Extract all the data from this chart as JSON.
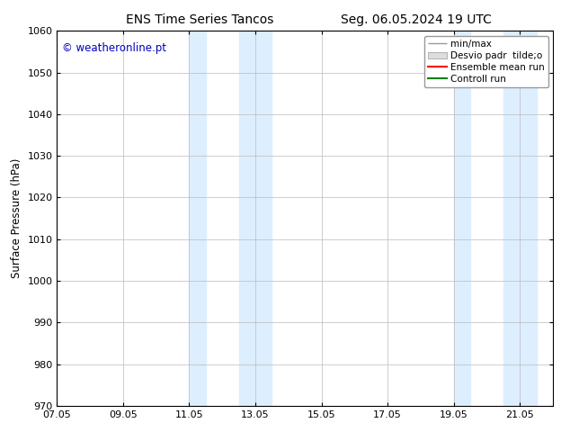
{
  "title_left": "ENS Time Series Tancos",
  "title_right": "Seg. 06.05.2024 19 UTC",
  "ylabel": "Surface Pressure (hPa)",
  "watermark": "© weatheronline.pt",
  "watermark_color": "#0000bb",
  "ylim": [
    970,
    1060
  ],
  "yticks": [
    970,
    980,
    990,
    1000,
    1010,
    1020,
    1030,
    1040,
    1050,
    1060
  ],
  "xtick_labels": [
    "07.05",
    "09.05",
    "11.05",
    "13.05",
    "15.05",
    "17.05",
    "19.05",
    "21.05"
  ],
  "xtick_positions": [
    0,
    2,
    4,
    6,
    8,
    10,
    12,
    14
  ],
  "x_min": 0,
  "x_max": 15,
  "shaded_bands": [
    {
      "x_start": 4,
      "x_end": 4.5,
      "color": "#ddeeff"
    },
    {
      "x_start": 5.5,
      "x_end": 6.5,
      "color": "#ddeeff"
    },
    {
      "x_start": 12,
      "x_end": 12.5,
      "color": "#ddeeff"
    },
    {
      "x_start": 13.5,
      "x_end": 14.5,
      "color": "#ddeeff"
    }
  ],
  "background_color": "#ffffff",
  "grid_color": "#bbbbbb",
  "font_size_title": 10,
  "font_size_axis": 8.5,
  "font_size_ticks": 8,
  "font_size_legend": 7.5,
  "font_size_watermark": 8.5
}
